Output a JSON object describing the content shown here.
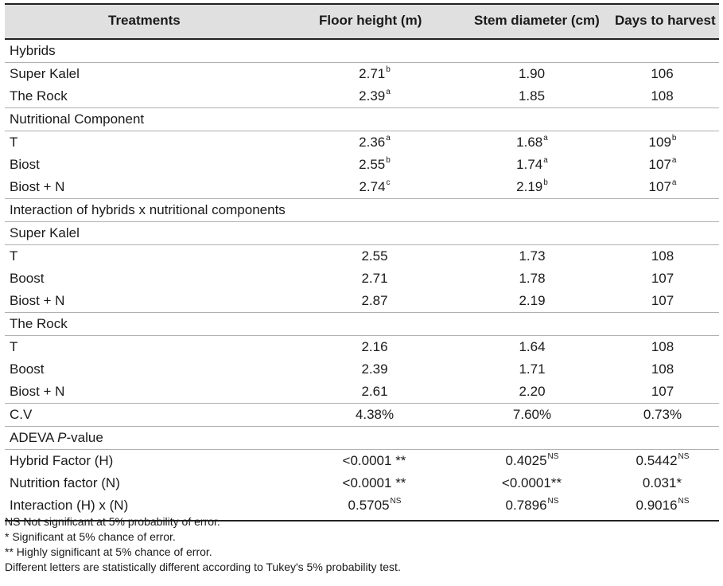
{
  "header": {
    "treatments": "Treatments",
    "floor_height": "Floor height (m)",
    "stem_diameter": "Stem diameter (cm)",
    "days_to_harvest": "Days to harvest"
  },
  "sections": {
    "hybrids": "Hybrids",
    "nutritional": "Nutritional Component",
    "interaction": "Interaction of hybrids x nutritional components",
    "super_kalel": "Super Kalel",
    "the_rock": "The Rock",
    "adeva_prefix": "ADEVA ",
    "adeva_italic": "P",
    "adeva_suffix": "-value"
  },
  "rows": {
    "h1": {
      "label": "Super Kalel",
      "fh": "2.71",
      "fh_s": "b",
      "sd": "1.90",
      "sd_s": "",
      "dh": "106",
      "dh_s": ""
    },
    "h2": {
      "label": "The Rock",
      "fh": "2.39",
      "fh_s": "a",
      "sd": "1.85",
      "sd_s": "",
      "dh": "108",
      "dh_s": ""
    },
    "n1": {
      "label": "T",
      "fh": "2.36",
      "fh_s": "a",
      "sd": "1.68",
      "sd_s": "a",
      "dh": "109",
      "dh_s": "b"
    },
    "n2": {
      "label": "Biost",
      "fh": "2.55",
      "fh_s": "b",
      "sd": "1.74",
      "sd_s": "a",
      "dh": "107",
      "dh_s": "a"
    },
    "n3": {
      "label": "Biost + N",
      "fh": "2.74",
      "fh_s": "c",
      "sd": "2.19",
      "sd_s": "b",
      "dh": "107",
      "dh_s": "a"
    },
    "sk1": {
      "label": "T",
      "fh": "2.55",
      "sd": "1.73",
      "dh": "108"
    },
    "sk2": {
      "label": "Boost",
      "fh": "2.71",
      "sd": "1.78",
      "dh": "107"
    },
    "sk3": {
      "label": "Biost + N",
      "fh": "2.87",
      "sd": "2.19",
      "dh": "107"
    },
    "tr1": {
      "label": "T",
      "fh": "2.16",
      "sd": "1.64",
      "dh": "108"
    },
    "tr2": {
      "label": "Boost",
      "fh": "2.39",
      "sd": "1.71",
      "dh": "108"
    },
    "tr3": {
      "label": "Biost + N",
      "fh": "2.61",
      "sd": "2.20",
      "dh": "107"
    },
    "cv": {
      "label": "C.V",
      "fh": "4.38%",
      "sd": "7.60%",
      "dh": "0.73%"
    },
    "a1": {
      "label": "Hybrid Factor (H)",
      "fh": "<0.0001 **",
      "fh_s": "",
      "sd": "0.4025",
      "sd_s": "NS",
      "dh": "0.5442",
      "dh_s": "NS"
    },
    "a2": {
      "label": "Nutrition factor (N)",
      "fh": "<0.0001 **",
      "fh_s": "",
      "sd": "<0.0001**",
      "sd_s": "",
      "dh": "0.031*",
      "dh_s": ""
    },
    "a3": {
      "label": "Interaction (H) x (N)",
      "fh": "0.5705",
      "fh_s": "NS",
      "sd": "0.7896",
      "sd_s": "NS",
      "dh": "0.9016",
      "dh_s": "NS"
    }
  },
  "notes": [
    "NS Not significant at 5% probability of error.",
    "* Significant at 5% chance of error.",
    "** Highly significant at 5% chance of error.",
    "Different letters are statistically different according to Tukey's 5% probability test."
  ]
}
